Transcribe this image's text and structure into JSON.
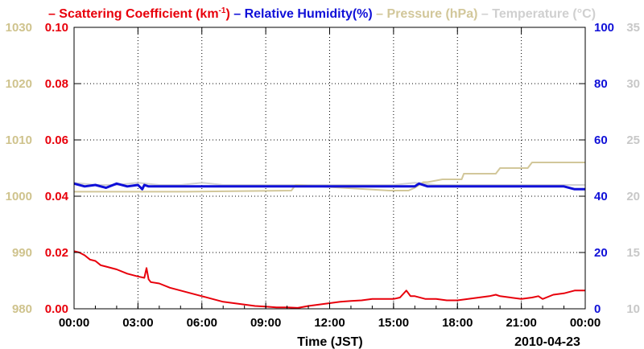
{
  "chart_data": {
    "type": "line",
    "xlabel": "Time (JST)",
    "date_label": "2010-04-23",
    "x_tick_labels": [
      "00:00",
      "03:00",
      "06:00",
      "09:00",
      "12:00",
      "15:00",
      "18:00",
      "21:00",
      "00:00"
    ],
    "x_range_hours": [
      0,
      24
    ],
    "grid": true,
    "legend": [
      {
        "prefix": "– ",
        "text": "Scattering Coefficient (km",
        "sup": "-1",
        "suffix": ")",
        "color": "#e8000b"
      },
      {
        "prefix": "– ",
        "text": "Relative Humidity(%)",
        "sup": "",
        "suffix": "",
        "color": "#1010d8"
      },
      {
        "prefix": "– ",
        "text": "Pressure (hPa)",
        "sup": "",
        "suffix": "",
        "color": "#d2c79a"
      },
      {
        "prefix": "– ",
        "text": "Temperature (°C)",
        "sup": "",
        "suffix": "",
        "color": "#d0d0d0"
      }
    ],
    "axes": {
      "pressure": {
        "ticks": [
          "1030",
          "1020",
          "1010",
          "1000",
          "990",
          "980"
        ],
        "range": [
          980,
          1030
        ],
        "color": "#cfc38d"
      },
      "scattering": {
        "ticks": [
          "0.10",
          "0.08",
          "0.06",
          "0.04",
          "0.02",
          "0.00"
        ],
        "range": [
          0,
          0.1
        ],
        "color": "#e8000b"
      },
      "humidity": {
        "ticks": [
          "100",
          "80",
          "60",
          "40",
          "20",
          "0"
        ],
        "range": [
          0,
          100
        ],
        "color": "#1010d8"
      },
      "temperature": {
        "ticks": [
          "35",
          "30",
          "25",
          "20",
          "15",
          "10"
        ],
        "range": [
          10,
          35
        ],
        "color": "#c8c8c8"
      }
    },
    "series": [
      {
        "name": "Scattering Coefficient",
        "axis": "scattering",
        "color": "#e8000b",
        "x": [
          0,
          0.25,
          0.5,
          0.75,
          1.0,
          1.25,
          1.5,
          2.0,
          2.5,
          3.0,
          3.3,
          3.4,
          3.5,
          3.6,
          4.0,
          4.5,
          5.0,
          5.5,
          6.0,
          6.5,
          7.0,
          7.5,
          8.0,
          8.5,
          9.0,
          9.5,
          10.0,
          10.5,
          11.0,
          11.5,
          12.0,
          12.5,
          13.0,
          13.5,
          14.0,
          14.5,
          15.0,
          15.3,
          15.6,
          15.8,
          16.0,
          16.5,
          17.0,
          17.5,
          18.0,
          18.5,
          19.0,
          19.5,
          19.8,
          20.0,
          20.5,
          21.0,
          21.5,
          21.8,
          22.0,
          22.5,
          23.0,
          23.5,
          24.0
        ],
        "values": [
          0.0205,
          0.02,
          0.019,
          0.0175,
          0.017,
          0.0155,
          0.015,
          0.014,
          0.0125,
          0.0115,
          0.011,
          0.0145,
          0.0105,
          0.0095,
          0.009,
          0.0075,
          0.0065,
          0.0055,
          0.0045,
          0.0035,
          0.0025,
          0.002,
          0.0015,
          0.001,
          0.0008,
          0.0005,
          0.0005,
          0.0003,
          0.001,
          0.0015,
          0.002,
          0.0025,
          0.0028,
          0.003,
          0.0035,
          0.0035,
          0.0035,
          0.004,
          0.0065,
          0.0045,
          0.0045,
          0.0035,
          0.0035,
          0.003,
          0.003,
          0.0035,
          0.004,
          0.0045,
          0.005,
          0.0045,
          0.004,
          0.0035,
          0.004,
          0.0045,
          0.0035,
          0.005,
          0.0055,
          0.0065,
          0.0065
        ]
      },
      {
        "name": "Relative Humidity",
        "axis": "humidity",
        "color": "#1010d8",
        "x": [
          0,
          0.5,
          1.0,
          1.5,
          2.0,
          2.5,
          3.0,
          3.2,
          3.3,
          3.5,
          4.0,
          5.0,
          6.0,
          7.0,
          8.0,
          9.0,
          10.0,
          11.0,
          12.0,
          13.0,
          14.0,
          15.0,
          16.0,
          16.2,
          16.6,
          17.0,
          18.0,
          19.0,
          20.0,
          21.0,
          22.0,
          23.0,
          23.5,
          24.0
        ],
        "values": [
          44.5,
          43.5,
          44,
          43,
          44.5,
          43.5,
          44,
          42.5,
          44,
          43.5,
          43.5,
          43.5,
          43.5,
          43.5,
          43.5,
          43.5,
          43.5,
          43.5,
          43.5,
          43.5,
          43.5,
          43.5,
          43.5,
          44.5,
          43.5,
          43.5,
          43.5,
          43.5,
          43.5,
          43.5,
          43.5,
          43.5,
          42.5,
          42.5
        ]
      },
      {
        "name": "Pressure",
        "axis": "pressure",
        "color": "#d2c79a",
        "x": [
          0,
          5.3,
          10.2,
          10.4,
          14.8,
          15.7,
          16.0,
          16.4,
          16.6,
          17.3,
          18.2,
          18.3,
          19.8,
          20.0,
          21.3,
          21.5,
          24.0
        ],
        "values": [
          1000.8,
          1000.8,
          1001.0,
          1002.0,
          1001.0,
          1001.0,
          1001.5,
          1002.5,
          1002.5,
          1003.0,
          1003.0,
          1004.0,
          1004.0,
          1005.0,
          1005.0,
          1006.0,
          1006.0
        ]
      },
      {
        "name": "Temperature",
        "axis": "temperature",
        "color": "#d0d0d0",
        "x": [
          0,
          1,
          2,
          3,
          4,
          5,
          6,
          7,
          8,
          9,
          10,
          11,
          12,
          13,
          14,
          15,
          16,
          17,
          18,
          19,
          20,
          21,
          22,
          23,
          24
        ],
        "values": [
          21.2,
          21.0,
          21.0,
          21.2,
          21.0,
          21.0,
          21.2,
          21.0,
          21.0,
          21.0,
          21.0,
          21.0,
          21.0,
          21.0,
          21.0,
          21.0,
          21.2,
          21.0,
          21.0,
          21.0,
          21.0,
          21.0,
          21.0,
          21.0,
          21.0
        ]
      }
    ]
  }
}
